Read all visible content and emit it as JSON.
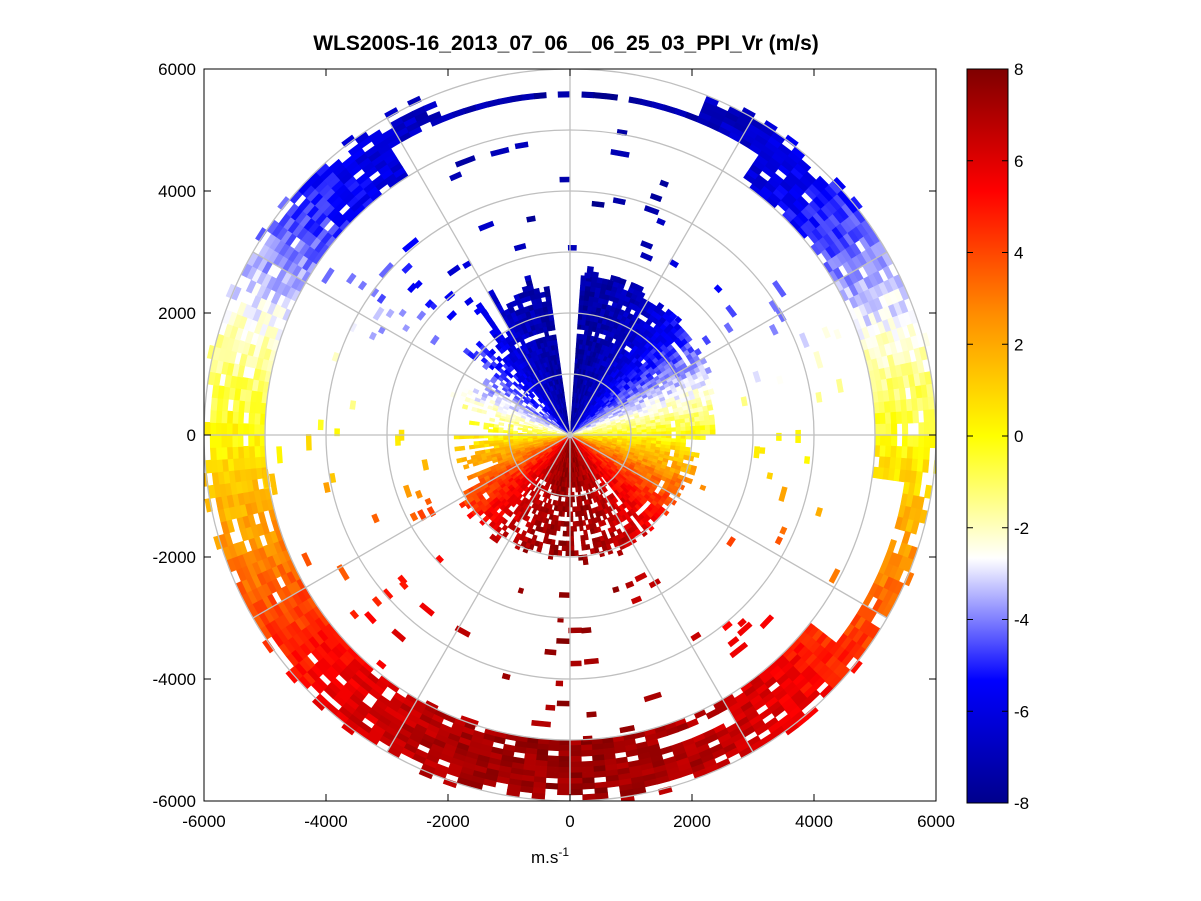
{
  "chart_data": {
    "type": "heatmap",
    "subtype": "polar-ppi-scan",
    "title": "WLS200S-16_2013_07_06__06_25_03_PPI_Vr (m/s)",
    "xlabel": "m.s",
    "xlabel_superscript": "-1",
    "ylabel": "",
    "xlim": [
      -6000,
      6000
    ],
    "ylim": [
      -6000,
      6000
    ],
    "xticks": [
      "-6000",
      "-4000",
      "-2000",
      "0",
      "2000",
      "4000",
      "6000"
    ],
    "yticks": [
      "6000",
      "4000",
      "2000",
      "0",
      "-2000",
      "-4000",
      "-6000"
    ],
    "xtick_values": [
      -6000,
      -4000,
      -2000,
      0,
      2000,
      4000,
      6000
    ],
    "ytick_values": [
      6000,
      4000,
      2000,
      0,
      -2000,
      -4000,
      -6000
    ],
    "range_rings": [
      1000,
      2000,
      3000,
      4000,
      5000,
      6000
    ],
    "spoke_angles_deg": [
      0,
      30,
      60,
      90,
      120,
      150,
      180,
      210,
      240,
      270,
      300,
      330
    ],
    "colorbar": {
      "min": -8,
      "max": 8,
      "ticks": [
        "8",
        "6",
        "4",
        "2",
        "0",
        "-2",
        "-4",
        "-6",
        "-8"
      ],
      "tick_values": [
        8,
        6,
        4,
        2,
        0,
        -2,
        -4,
        -6,
        -8
      ],
      "colors": [
        "#00008c",
        "#0000ff",
        "#ffffff",
        "#ffff00",
        "#ff8c00",
        "#ff0000",
        "#7f0000"
      ]
    },
    "inner_region": {
      "range_m": [
        60,
        2700
      ],
      "angular_gap_deg": [
        -8,
        4
      ],
      "lower_sector_cutoff_deg": [
        -93,
        207
      ],
      "gap_ranges_m": [
        [
          1600,
          1700
        ],
        [
          2200,
          2260
        ]
      ]
    },
    "outer_band": {
      "range_m": [
        5000,
        6050
      ],
      "gaps": [
        {
          "azimuth_deg": [
            -32,
            32
          ],
          "range_m": [
            5000,
            5450
          ]
        },
        {
          "azimuth_deg": [
            -22,
            20
          ],
          "range_m": [
            5550,
            6050
          ]
        },
        {
          "azimuth_deg": [
            98,
            126
          ],
          "range_m": [
            5000,
            5450
          ]
        },
        {
          "azimuth_deg": [
            150,
            162
          ],
          "range_m": [
            5100,
            5350
          ]
        }
      ]
    },
    "velocity_pattern": "radial velocity approximately -7.5*cos(azimuth) m/s, azimuth clockwise from north: approaching (negative, blue) to the north, receding (positive, red) to the south, near zero (white/yellow) east and west"
  }
}
